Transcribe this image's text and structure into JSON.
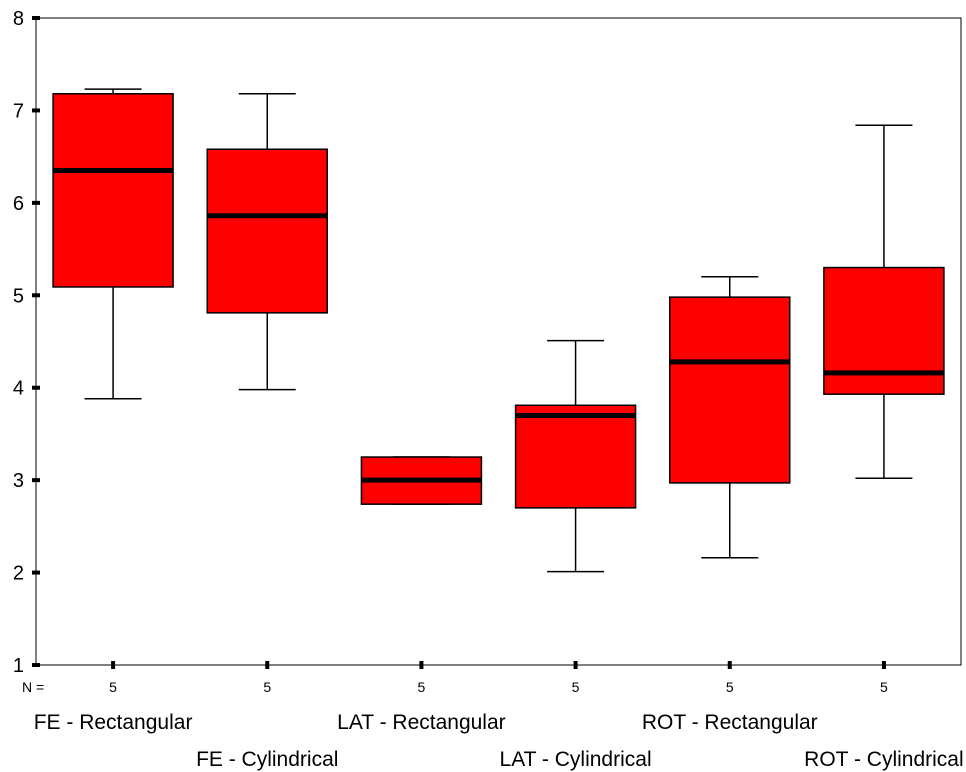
{
  "chart_data": {
    "type": "boxplot",
    "title": "",
    "xlabel": "",
    "ylabel": "",
    "ylim": [
      1,
      8
    ],
    "yticks": [
      "1",
      "2",
      "3",
      "4",
      "5",
      "6",
      "7",
      "8"
    ],
    "n_label": "N =",
    "grid": false,
    "colors": {
      "box_fill": "#ff0000",
      "stroke": "#000000",
      "background": "#ffffff"
    },
    "categories": [
      "FE - Rectangular",
      "FE - Cylindrical",
      "LAT - Rectangular",
      "LAT - Cylindrical",
      "ROT - Rectangular",
      "ROT - Cylindrical"
    ],
    "counts": [
      "5",
      "5",
      "5",
      "5",
      "5",
      "5"
    ],
    "boxes": [
      {
        "min": 3.88,
        "q1": 5.09,
        "median": 6.35,
        "q3": 7.18,
        "max": 7.23
      },
      {
        "min": 3.98,
        "q1": 4.81,
        "median": 5.86,
        "q3": 6.58,
        "max": 7.18
      },
      {
        "min": 2.74,
        "q1": 2.74,
        "median": 3.0,
        "q3": 3.25,
        "max": 3.25
      },
      {
        "min": 2.01,
        "q1": 2.7,
        "median": 3.7,
        "q3": 3.81,
        "max": 4.51
      },
      {
        "min": 2.16,
        "q1": 2.97,
        "median": 4.28,
        "q3": 4.98,
        "max": 5.2
      },
      {
        "min": 3.02,
        "q1": 3.93,
        "median": 4.16,
        "q3": 5.3,
        "max": 6.84
      }
    ]
  }
}
